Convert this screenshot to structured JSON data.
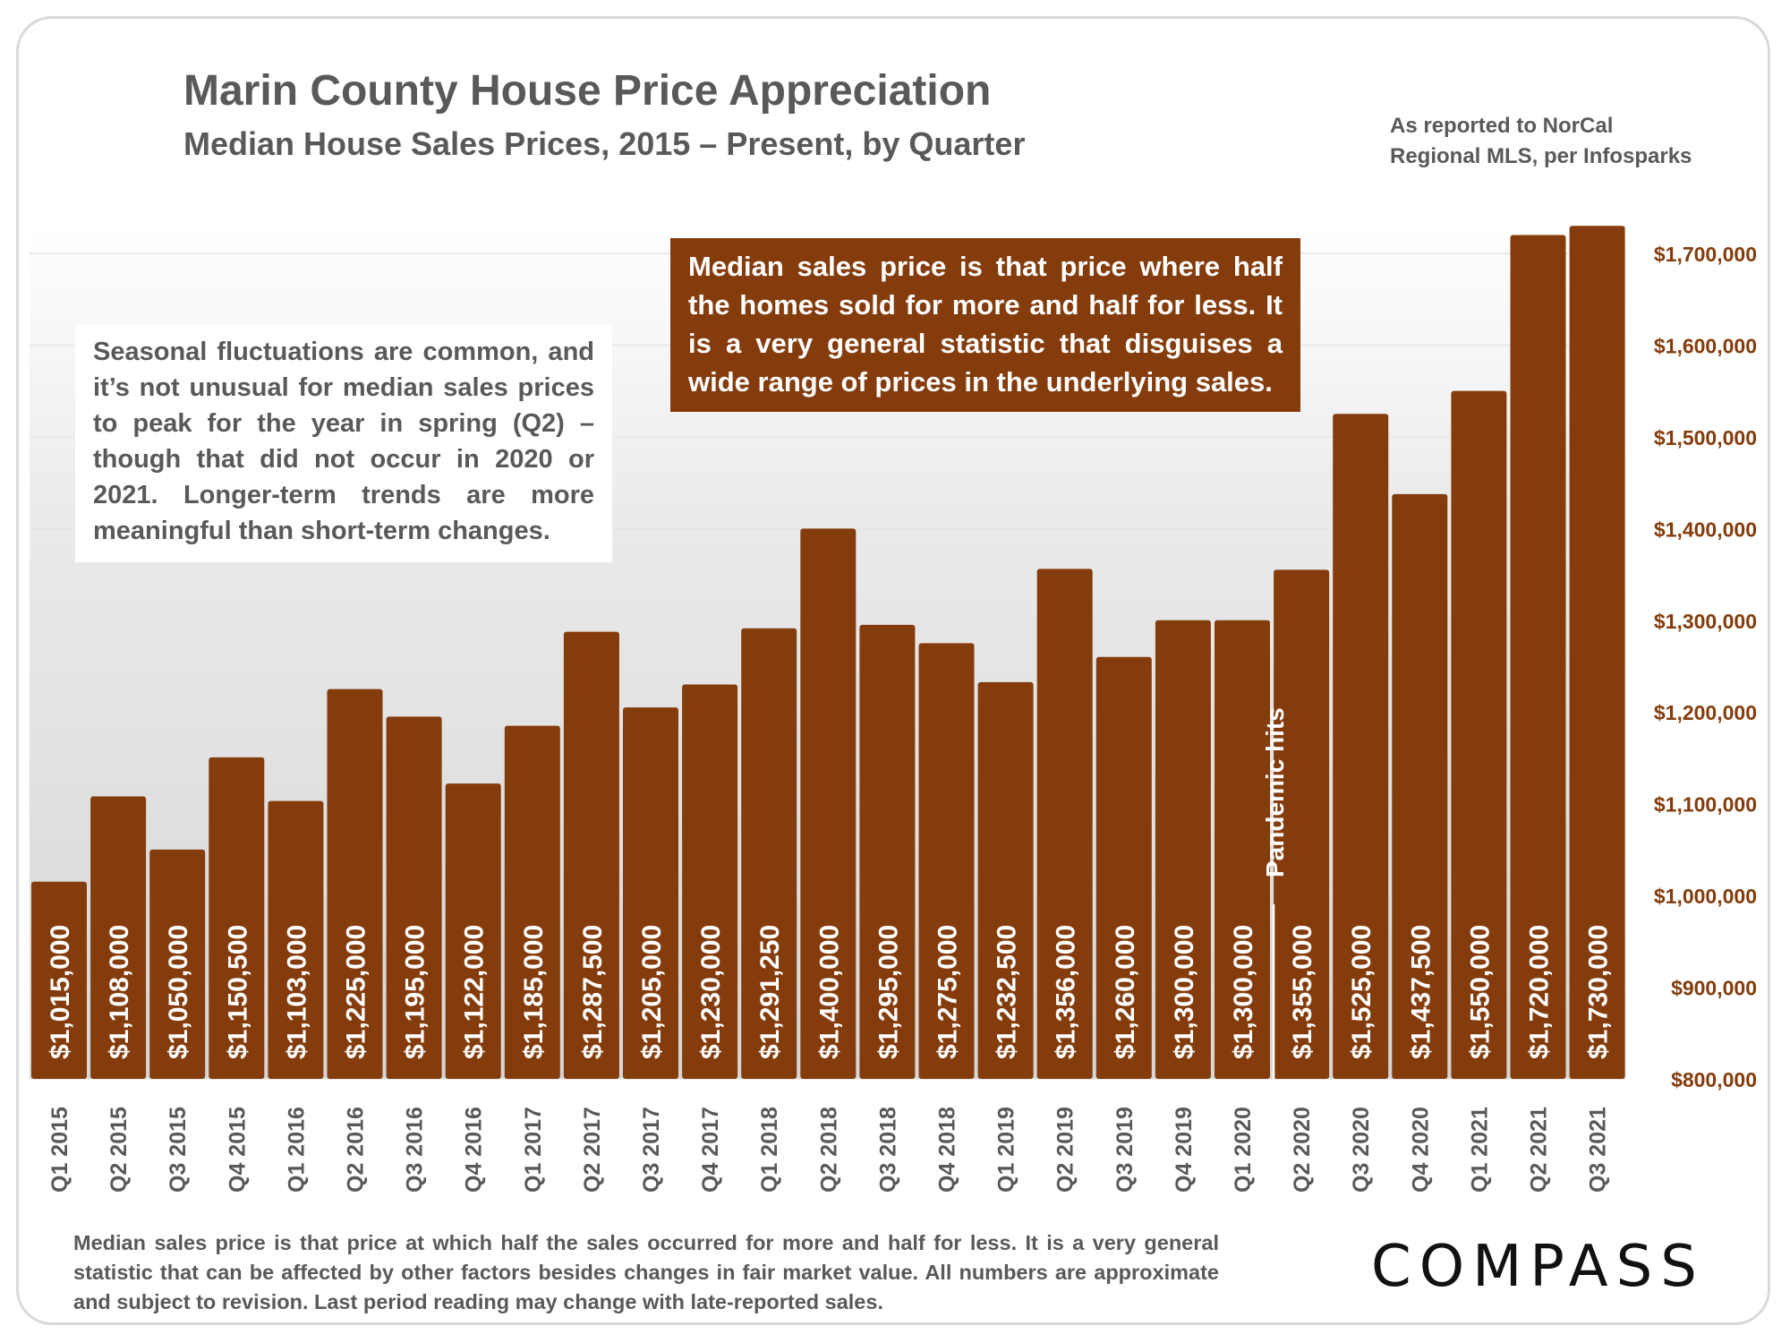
{
  "header": {
    "title": "Marin County House Price Appreciation",
    "subtitle": "Median House Sales Prices, 2015 – Present, by Quarter",
    "source_line1": "As reported to NorCal",
    "source_line2": "Regional MLS, per Infosparks"
  },
  "notes": {
    "seasonal": "Seasonal fluctuations are common, and it’s not unusual for median sales prices to peak for the year in spring (Q2) – though that did not occur in 2020 or 2021. Longer-term trends are more meaningful than short-term changes.",
    "median_definition": "Median sales price is that price where half the homes sold for more and half for less. It is a very general statistic that disguises a wide range of prices in the underlying sales.",
    "pandemic": "Pandemic hits"
  },
  "footnote": "Median sales price is that price at which half the sales occurred for more and half for less. It is a very general statistic that can be affected by other factors besides changes in fair market value. All numbers are approximate and subject to revision. Last period reading may change with late-reported sales.",
  "logo": "COMPASS",
  "colors": {
    "bar": "#843c0c",
    "axis_label": "#843c0c",
    "text": "#595959"
  },
  "chart_data": {
    "type": "bar",
    "categories": [
      "Q1 2015",
      "Q2 2015",
      "Q3 2015",
      "Q4 2015",
      "Q1 2016",
      "Q2 2016",
      "Q3 2016",
      "Q4 2016",
      "Q1 2017",
      "Q2 2017",
      "Q3 2017",
      "Q4 2017",
      "Q1 2018",
      "Q2 2018",
      "Q3 2018",
      "Q4 2018",
      "Q1 2019",
      "Q2 2019",
      "Q3 2019",
      "Q4 2019",
      "Q1 2020",
      "Q2 2020",
      "Q3 2020",
      "Q4 2020",
      "Q1 2021",
      "Q2 2021",
      "Q3 2021"
    ],
    "values": [
      1015000,
      1108000,
      1050000,
      1150500,
      1103000,
      1225000,
      1195000,
      1122000,
      1185000,
      1287500,
      1205000,
      1230000,
      1291250,
      1400000,
      1295000,
      1275000,
      1232500,
      1356000,
      1260000,
      1300000,
      1300000,
      1355000,
      1525000,
      1437500,
      1550000,
      1720000,
      1730000
    ],
    "data_labels": [
      "$1,015,000",
      "$1,108,000",
      "$1,050,000",
      "$1,150,500",
      "$1,103,000",
      "$1,225,000",
      "$1,195,000",
      "$1,122,000",
      "$1,185,000",
      "$1,287,500",
      "$1,205,000",
      "$1,230,000",
      "$1,291,250",
      "$1,400,000",
      "$1,295,000",
      "$1,275,000",
      "$1,232,500",
      "$1,356,000",
      "$1,260,000",
      "$1,300,000",
      "$1,300,000",
      "$1,355,000",
      "$1,525,000",
      "$1,437,500",
      "$1,550,000",
      "$1,720,000",
      "$1,730,000"
    ],
    "y_ticks": [
      800000,
      900000,
      1000000,
      1100000,
      1200000,
      1300000,
      1400000,
      1500000,
      1600000,
      1700000
    ],
    "y_tick_labels": [
      "$800,000",
      "$900,000",
      "$1,000,000",
      "$1,100,000",
      "$1,200,000",
      "$1,300,000",
      "$1,400,000",
      "$1,500,000",
      "$1,600,000",
      "$1,700,000"
    ],
    "ylim": [
      800000,
      1750000
    ],
    "y_axis_side": "right",
    "grid": true,
    "annotation": {
      "text_key": "notes.pandemic",
      "after_category": "Q1 2020"
    }
  }
}
